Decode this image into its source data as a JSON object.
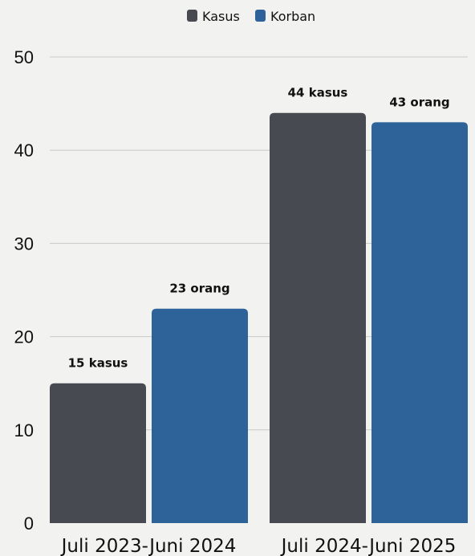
{
  "colors": {
    "kasus": "#474a50",
    "korban": "#2d6399",
    "grid": "#c9c9c9",
    "background": "#f2f2f1"
  },
  "chart_data": {
    "type": "bar",
    "categories": [
      "Juli 2023-Juni 2024",
      "Juli 2024-Juni 2025"
    ],
    "series": [
      {
        "name": "Kasus",
        "values": [
          15,
          44
        ],
        "labels": [
          "15 kasus",
          "44 kasus"
        ],
        "color": "#474a50"
      },
      {
        "name": "Korban",
        "values": [
          23,
          43
        ],
        "labels": [
          "23 orang",
          "43 orang"
        ],
        "color": "#2d6399"
      }
    ],
    "y_ticks": [
      0,
      10,
      20,
      30,
      40,
      50
    ],
    "ylim": [
      0,
      50
    ],
    "grid": true,
    "legend": "top-center"
  }
}
